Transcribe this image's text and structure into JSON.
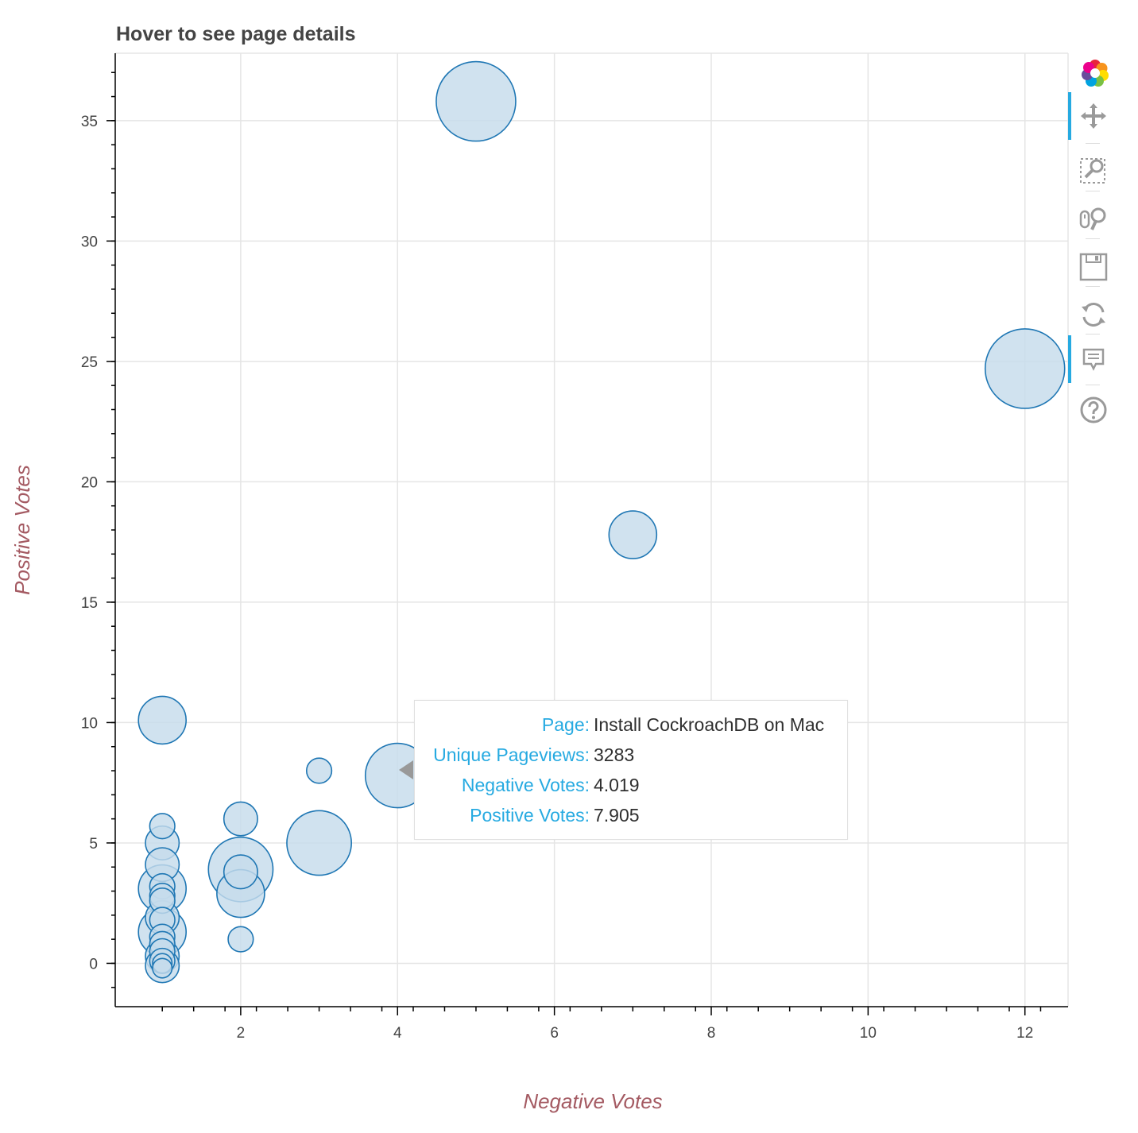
{
  "chart_data": {
    "type": "scatter",
    "title": "Hover to see page details",
    "xlabel": "Negative Votes",
    "ylabel": "Positive Votes",
    "xlim": [
      0.4,
      12.55
    ],
    "ylim": [
      -1.8,
      37.8
    ],
    "x_ticks": [
      2,
      4,
      6,
      8,
      10,
      12
    ],
    "y_ticks": [
      0,
      5,
      10,
      15,
      20,
      25,
      30,
      35
    ],
    "grid": true,
    "colors": {
      "fill": "#c6dcec",
      "stroke": "#1f77b4",
      "grid": "#e5e5e5",
      "axis": "#000000",
      "title": "#444444",
      "axis_title": "#a45a62"
    },
    "series": [
      {
        "name": "pages",
        "marker_size_field": "unique_pageviews",
        "points": [
          {
            "x": 5.0,
            "y": 35.8,
            "size": 5000
          },
          {
            "x": 12.0,
            "y": 24.7,
            "size": 5000
          },
          {
            "x": 7.0,
            "y": 17.8,
            "size": 1800
          },
          {
            "x": 1.0,
            "y": 10.1,
            "size": 1800
          },
          {
            "x": 3.0,
            "y": 8.0,
            "size": 500
          },
          {
            "x": 4.0,
            "y": 7.8,
            "size": 3283
          },
          {
            "x": 3.0,
            "y": 5.0,
            "size": 3300
          },
          {
            "x": 2.0,
            "y": 6.0,
            "size": 900
          },
          {
            "x": 2.0,
            "y": 3.9,
            "size": 3300
          },
          {
            "x": 2.0,
            "y": 3.8,
            "size": 900
          },
          {
            "x": 2.0,
            "y": 2.9,
            "size": 1800
          },
          {
            "x": 2.0,
            "y": 1.0,
            "size": 500
          },
          {
            "x": 1.0,
            "y": 5.7,
            "size": 500
          },
          {
            "x": 1.0,
            "y": 5.0,
            "size": 900
          },
          {
            "x": 1.0,
            "y": 4.1,
            "size": 900
          },
          {
            "x": 1.0,
            "y": 3.1,
            "size": 1800
          },
          {
            "x": 1.0,
            "y": 3.2,
            "size": 500
          },
          {
            "x": 1.0,
            "y": 2.8,
            "size": 500
          },
          {
            "x": 1.0,
            "y": 2.6,
            "size": 500
          },
          {
            "x": 1.0,
            "y": 1.9,
            "size": 900
          },
          {
            "x": 1.0,
            "y": 1.8,
            "size": 500
          },
          {
            "x": 1.0,
            "y": 1.3,
            "size": 1800
          },
          {
            "x": 1.0,
            "y": 1.1,
            "size": 500
          },
          {
            "x": 1.0,
            "y": 0.8,
            "size": 500
          },
          {
            "x": 1.0,
            "y": 0.5,
            "size": 500
          },
          {
            "x": 1.0,
            "y": 0.3,
            "size": 900
          },
          {
            "x": 1.0,
            "y": 0.1,
            "size": 500
          },
          {
            "x": 1.0,
            "y": 0.0,
            "size": 300
          },
          {
            "x": 1.0,
            "y": -0.1,
            "size": 900
          },
          {
            "x": 1.0,
            "y": -0.2,
            "size": 300
          }
        ]
      }
    ],
    "tooltip": {
      "rows": [
        {
          "key": "Page:",
          "value": "Install CockroachDB on Mac"
        },
        {
          "key": "Unique Pageviews:",
          "value": "3283"
        },
        {
          "key": "Negative Votes:",
          "value": "4.019"
        },
        {
          "key": "Positive Votes:",
          "value": "7.905"
        }
      ]
    }
  },
  "toolbar": {
    "tools": [
      {
        "name": "logo",
        "icon": "bokeh-logo-icon"
      },
      {
        "name": "pan",
        "icon": "pan-icon",
        "active": true
      },
      {
        "name": "box-zoom",
        "icon": "box-zoom-icon"
      },
      {
        "name": "wheel-zoom",
        "icon": "wheel-zoom-icon"
      },
      {
        "name": "save",
        "icon": "save-icon"
      },
      {
        "name": "reset",
        "icon": "reset-icon"
      },
      {
        "name": "hover",
        "icon": "hover-icon",
        "active": true
      },
      {
        "name": "help",
        "icon": "help-icon"
      }
    ]
  }
}
